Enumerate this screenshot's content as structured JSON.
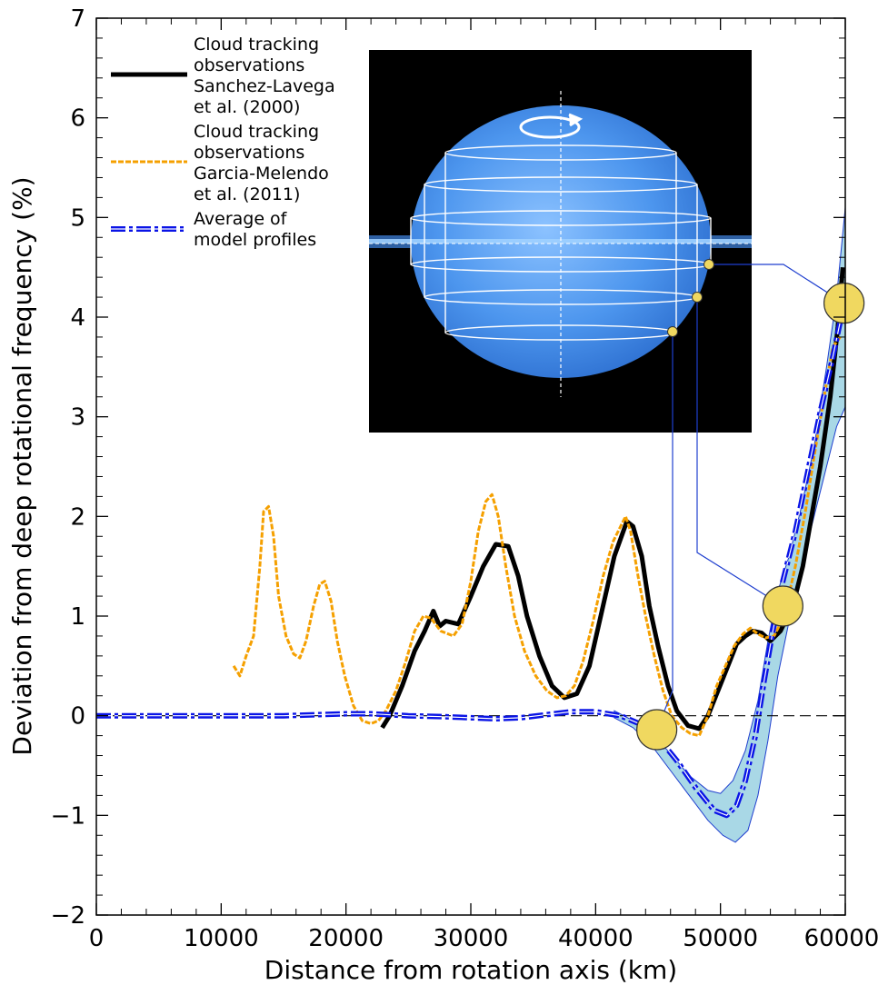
{
  "chart_data": {
    "type": "line",
    "title": "",
    "xlabel": "Distance from rotation axis (km)",
    "ylabel": "Deviation from deep rotational frequency (%)",
    "xlim": [
      0,
      60000
    ],
    "ylim": [
      -2,
      7
    ],
    "x_ticks": [
      0,
      10000,
      20000,
      30000,
      40000,
      50000,
      60000
    ],
    "x_tick_labels": [
      "0",
      "10000",
      "20000",
      "30000",
      "40000",
      "50000",
      "60000"
    ],
    "y_ticks": [
      -2,
      -1,
      0,
      1,
      2,
      3,
      4,
      5,
      6,
      7
    ],
    "y_tick_labels": [
      "−2",
      "−1",
      "0",
      "1",
      "2",
      "3",
      "4",
      "5",
      "6",
      "7"
    ],
    "grid": false,
    "legend_position": "top-left",
    "reference_line": {
      "y": 0,
      "style": "dashed"
    },
    "series": [
      {
        "name": "Cloud tracking observations Sanchez-Lavega et al. (2000)",
        "legend_lines": [
          "Cloud tracking",
          "observations",
          "Sanchez-Lavega",
          "et al. (2000)"
        ],
        "color": "#000000",
        "style": "solid",
        "points": [
          [
            22900,
            -0.12
          ],
          [
            23500,
            0.0
          ],
          [
            24500,
            0.3
          ],
          [
            25500,
            0.65
          ],
          [
            26300,
            0.85
          ],
          [
            27000,
            1.05
          ],
          [
            27500,
            0.9
          ],
          [
            28000,
            0.95
          ],
          [
            29000,
            0.92
          ],
          [
            30000,
            1.2
          ],
          [
            31000,
            1.5
          ],
          [
            32000,
            1.72
          ],
          [
            33000,
            1.7
          ],
          [
            33800,
            1.4
          ],
          [
            34500,
            1.0
          ],
          [
            35500,
            0.6
          ],
          [
            36500,
            0.3
          ],
          [
            37500,
            0.18
          ],
          [
            38500,
            0.22
          ],
          [
            39500,
            0.5
          ],
          [
            40500,
            1.05
          ],
          [
            41500,
            1.6
          ],
          [
            42500,
            1.95
          ],
          [
            43000,
            1.9
          ],
          [
            43700,
            1.6
          ],
          [
            44300,
            1.1
          ],
          [
            45000,
            0.7
          ],
          [
            45800,
            0.3
          ],
          [
            46500,
            0.05
          ],
          [
            47400,
            -0.1
          ],
          [
            48300,
            -0.13
          ],
          [
            49000,
            0.0
          ],
          [
            49800,
            0.25
          ],
          [
            50600,
            0.5
          ],
          [
            51300,
            0.72
          ],
          [
            52000,
            0.8
          ],
          [
            52600,
            0.85
          ],
          [
            53300,
            0.83
          ],
          [
            54000,
            0.75
          ],
          [
            54800,
            0.85
          ],
          [
            55800,
            1.1
          ],
          [
            56600,
            1.5
          ],
          [
            57300,
            2.0
          ],
          [
            58000,
            2.5
          ],
          [
            58800,
            3.2
          ],
          [
            59400,
            3.9
          ],
          [
            59800,
            4.5
          ]
        ]
      },
      {
        "name": "Cloud tracking observations Garcia-Melendo et al. (2011)",
        "legend_lines": [
          "Cloud tracking",
          "observations",
          "Garcia-Melendo",
          "et al. (2011)"
        ],
        "color": "#f5a000",
        "style": "dashed",
        "points": [
          [
            11000,
            0.5
          ],
          [
            11500,
            0.4
          ],
          [
            12000,
            0.6
          ],
          [
            12600,
            0.8
          ],
          [
            13100,
            1.5
          ],
          [
            13400,
            2.05
          ],
          [
            13800,
            2.1
          ],
          [
            14200,
            1.8
          ],
          [
            14600,
            1.2
          ],
          [
            15200,
            0.8
          ],
          [
            15800,
            0.62
          ],
          [
            16300,
            0.58
          ],
          [
            16800,
            0.75
          ],
          [
            17400,
            1.1
          ],
          [
            17900,
            1.32
          ],
          [
            18300,
            1.35
          ],
          [
            18800,
            1.15
          ],
          [
            19300,
            0.75
          ],
          [
            19900,
            0.4
          ],
          [
            20600,
            0.1
          ],
          [
            21300,
            -0.05
          ],
          [
            22000,
            -0.08
          ],
          [
            22600,
            -0.05
          ],
          [
            23200,
            0.05
          ],
          [
            24000,
            0.25
          ],
          [
            24800,
            0.55
          ],
          [
            25500,
            0.85
          ],
          [
            26200,
            1.0
          ],
          [
            26800,
            0.98
          ],
          [
            27600,
            0.85
          ],
          [
            28600,
            0.8
          ],
          [
            29300,
            0.92
          ],
          [
            30000,
            1.35
          ],
          [
            30600,
            1.85
          ],
          [
            31200,
            2.15
          ],
          [
            31700,
            2.22
          ],
          [
            32200,
            2.0
          ],
          [
            32800,
            1.5
          ],
          [
            33500,
            1.0
          ],
          [
            34300,
            0.65
          ],
          [
            35200,
            0.4
          ],
          [
            36100,
            0.25
          ],
          [
            36900,
            0.18
          ],
          [
            37600,
            0.2
          ],
          [
            38300,
            0.3
          ],
          [
            39000,
            0.55
          ],
          [
            39800,
            0.95
          ],
          [
            40600,
            1.4
          ],
          [
            41400,
            1.75
          ],
          [
            42000,
            1.9
          ],
          [
            42400,
            2.0
          ],
          [
            42800,
            1.85
          ],
          [
            43400,
            1.4
          ],
          [
            44000,
            1.0
          ],
          [
            44700,
            0.6
          ],
          [
            45400,
            0.25
          ],
          [
            46100,
            0.0
          ],
          [
            46900,
            -0.12
          ],
          [
            47600,
            -0.18
          ],
          [
            48300,
            -0.2
          ],
          [
            49000,
            0.0
          ],
          [
            49700,
            0.3
          ],
          [
            50400,
            0.5
          ],
          [
            51100,
            0.7
          ],
          [
            51800,
            0.82
          ],
          [
            52400,
            0.88
          ],
          [
            53000,
            0.82
          ],
          [
            53600,
            0.78
          ],
          [
            54300,
            0.8
          ],
          [
            55100,
            1.0
          ],
          [
            56000,
            1.5
          ],
          [
            56800,
            2.05
          ],
          [
            57500,
            2.6
          ],
          [
            58300,
            3.2
          ],
          [
            59000,
            3.7
          ],
          [
            59600,
            3.8
          ]
        ]
      },
      {
        "name": "Average of model profiles",
        "legend_lines": [
          "Average of",
          "model profiles"
        ],
        "color": "#0a14e6",
        "style": "dashdot",
        "points": [
          [
            0,
            0.0
          ],
          [
            5000,
            0.0
          ],
          [
            10000,
            0.0
          ],
          [
            15000,
            0.0
          ],
          [
            20000,
            0.02
          ],
          [
            22000,
            0.02
          ],
          [
            25000,
            0.0
          ],
          [
            28000,
            -0.01
          ],
          [
            30000,
            -0.02
          ],
          [
            32000,
            -0.03
          ],
          [
            34000,
            -0.02
          ],
          [
            36000,
            0.01
          ],
          [
            38000,
            0.04
          ],
          [
            40000,
            0.04
          ],
          [
            42000,
            0.0
          ],
          [
            43500,
            -0.08
          ],
          [
            45000,
            -0.22
          ],
          [
            46500,
            -0.45
          ],
          [
            48000,
            -0.72
          ],
          [
            49500,
            -0.95
          ],
          [
            50500,
            -1.0
          ],
          [
            51300,
            -0.9
          ],
          [
            52000,
            -0.65
          ],
          [
            52800,
            -0.2
          ],
          [
            53500,
            0.35
          ],
          [
            54200,
            0.85
          ],
          [
            55000,
            1.35
          ],
          [
            56000,
            1.85
          ],
          [
            57000,
            2.45
          ],
          [
            58000,
            3.05
          ],
          [
            59000,
            3.6
          ],
          [
            60000,
            4.2
          ]
        ]
      }
    ],
    "uncertainty_band": {
      "series": "Average of model profiles",
      "color": "#a9d8e6",
      "upper": [
        [
          41500,
          0.05
        ],
        [
          43000,
          -0.05
        ],
        [
          44500,
          -0.18
        ],
        [
          46000,
          -0.38
        ],
        [
          47500,
          -0.6
        ],
        [
          49000,
          -0.75
        ],
        [
          50000,
          -0.78
        ],
        [
          51000,
          -0.65
        ],
        [
          52000,
          -0.35
        ],
        [
          53000,
          0.15
        ],
        [
          53800,
          0.75
        ],
        [
          54600,
          1.25
        ],
        [
          55500,
          1.6
        ],
        [
          56500,
          2.1
        ],
        [
          57500,
          2.7
        ],
        [
          58500,
          3.5
        ],
        [
          59300,
          4.2
        ],
        [
          60000,
          5.1
        ]
      ],
      "lower": [
        [
          60000,
          3.1
        ],
        [
          59300,
          2.9
        ],
        [
          58500,
          2.5
        ],
        [
          57500,
          2.0
        ],
        [
          56500,
          1.5
        ],
        [
          55500,
          0.95
        ],
        [
          54600,
          0.4
        ],
        [
          53800,
          -0.25
        ],
        [
          53000,
          -0.8
        ],
        [
          52200,
          -1.15
        ],
        [
          51200,
          -1.27
        ],
        [
          50200,
          -1.2
        ],
        [
          49000,
          -1.05
        ],
        [
          47500,
          -0.8
        ],
        [
          46000,
          -0.55
        ],
        [
          44500,
          -0.3
        ],
        [
          43000,
          -0.12
        ],
        [
          41500,
          -0.02
        ]
      ]
    },
    "markers": [
      {
        "x": 44900,
        "y": -0.14,
        "inset_link": "lower"
      },
      {
        "x": 55000,
        "y": 1.1,
        "inset_link": "middle"
      },
      {
        "x": 59900,
        "y": 4.14,
        "inset_link": "upper"
      }
    ],
    "marker_color": "#f0d860",
    "inset": {
      "description": "Saturn with cylindrical rotation shells",
      "background": "#000000",
      "planet_color": "#3f8ee8",
      "shell_color": "#ffffff",
      "link_line_color": "#1f3fcf"
    }
  }
}
